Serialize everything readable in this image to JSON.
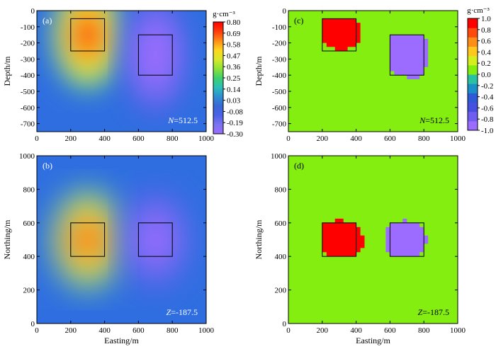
{
  "chart_data": [
    {
      "id": "a",
      "type": "heatmap",
      "panel_label": "(a)",
      "title": "",
      "annotation": "N=512.5",
      "xlabel": "",
      "ylabel": "Depth/m",
      "xlim": [
        0,
        1000
      ],
      "ylim": [
        -750,
        0
      ],
      "xticks": [
        0,
        200,
        400,
        600,
        800,
        1000
      ],
      "yticks": [
        0,
        -100,
        -200,
        -300,
        -400,
        -500,
        -600,
        -700
      ],
      "colorbar": "smooth",
      "boxes": [
        {
          "x": [
            200,
            400
          ],
          "y": [
            -250,
            -50
          ]
        },
        {
          "x": [
            600,
            800
          ],
          "y": [
            -400,
            -150
          ]
        }
      ],
      "value_range": [
        -0.3,
        0.8
      ],
      "anomalies": [
        {
          "center_x": 300,
          "center_y": -150,
          "peak": 0.8
        },
        {
          "center_x": 700,
          "center_y": -275,
          "peak": -0.3
        }
      ]
    },
    {
      "id": "b",
      "type": "heatmap",
      "panel_label": "(b)",
      "title": "",
      "annotation": "Z=-187.5",
      "xlabel": "Easting/m",
      "ylabel": "Northing/m",
      "xlim": [
        0,
        1000
      ],
      "ylim": [
        0,
        1000
      ],
      "xticks": [
        0,
        200,
        400,
        600,
        800,
        1000
      ],
      "yticks": [
        0,
        200,
        400,
        600,
        800,
        1000
      ],
      "colorbar": "smooth",
      "boxes": [
        {
          "x": [
            200,
            400
          ],
          "y": [
            400,
            600
          ]
        },
        {
          "x": [
            600,
            800
          ],
          "y": [
            400,
            600
          ]
        }
      ],
      "value_range": [
        -0.3,
        0.8
      ],
      "anomalies": [
        {
          "center_x": 300,
          "center_y": 500,
          "peak": 0.8
        },
        {
          "center_x": 700,
          "center_y": 500,
          "peak": -0.3
        }
      ]
    },
    {
      "id": "c",
      "type": "heatmap",
      "panel_label": "(c)",
      "title": "",
      "annotation": "N=512.5",
      "xlabel": "",
      "ylabel": "Depth/m",
      "xlim": [
        0,
        1000
      ],
      "ylim": [
        -750,
        0
      ],
      "xticks": [
        0,
        200,
        400,
        600,
        800,
        1000
      ],
      "yticks": [
        0,
        -100,
        -200,
        -300,
        -400,
        -500,
        -600,
        -700
      ],
      "colorbar": "discrete",
      "background_value": 0.0,
      "boxes": [
        {
          "x": [
            200,
            400
          ],
          "y": [
            -250,
            -50
          ]
        },
        {
          "x": [
            600,
            800
          ],
          "y": [
            -400,
            -150
          ]
        }
      ],
      "blocks": [
        {
          "value": 1.0,
          "polygon": [
            [
              200,
              -50
            ],
            [
              400,
              -50
            ],
            [
              400,
              -75
            ],
            [
              425,
              -75
            ],
            [
              425,
              -200
            ],
            [
              400,
              -200
            ],
            [
              400,
              -225
            ],
            [
              350,
              -225
            ],
            [
              350,
              -250
            ],
            [
              275,
              -250
            ],
            [
              275,
              -225
            ],
            [
              225,
              -225
            ],
            [
              225,
              -200
            ],
            [
              200,
              -200
            ]
          ]
        },
        {
          "value": -1.0,
          "polygon": [
            [
              600,
              -150
            ],
            [
              800,
              -150
            ],
            [
              800,
              -175
            ],
            [
              825,
              -175
            ],
            [
              825,
              -350
            ],
            [
              800,
              -350
            ],
            [
              800,
              -400
            ],
            [
              775,
              -400
            ],
            [
              775,
              -425
            ],
            [
              700,
              -425
            ],
            [
              700,
              -400
            ],
            [
              625,
              -400
            ],
            [
              625,
              -375
            ],
            [
              600,
              -375
            ]
          ]
        }
      ]
    },
    {
      "id": "d",
      "type": "heatmap",
      "panel_label": "(d)",
      "title": "",
      "annotation": "Z=-187.5",
      "xlabel": "Easting/m",
      "ylabel": "Northing/m",
      "xlim": [
        0,
        1000
      ],
      "ylim": [
        0,
        1000
      ],
      "xticks": [
        0,
        200,
        400,
        600,
        800,
        1000
      ],
      "yticks": [
        0,
        200,
        400,
        600,
        800,
        1000
      ],
      "colorbar": "discrete",
      "background_value": 0.0,
      "boxes": [
        {
          "x": [
            200,
            400
          ],
          "y": [
            400,
            600
          ]
        },
        {
          "x": [
            600,
            800
          ],
          "y": [
            400,
            600
          ]
        }
      ],
      "blocks": [
        {
          "value": 1.0,
          "polygon": [
            [
              200,
              425
            ],
            [
              200,
              600
            ],
            [
              275,
              600
            ],
            [
              275,
              625
            ],
            [
              325,
              625
            ],
            [
              325,
              600
            ],
            [
              400,
              600
            ],
            [
              400,
              575
            ],
            [
              425,
              575
            ],
            [
              425,
              525
            ],
            [
              450,
              525
            ],
            [
              450,
              450
            ],
            [
              425,
              450
            ],
            [
              425,
              425
            ],
            [
              400,
              425
            ],
            [
              400,
              400
            ],
            [
              225,
              400
            ],
            [
              225,
              425
            ]
          ]
        },
        {
          "value": -1.0,
          "polygon": [
            [
              575,
              425
            ],
            [
              575,
              575
            ],
            [
              600,
              575
            ],
            [
              600,
              600
            ],
            [
              675,
              600
            ],
            [
              675,
              625
            ],
            [
              700,
              625
            ],
            [
              700,
              600
            ],
            [
              775,
              600
            ],
            [
              775,
              575
            ],
            [
              800,
              575
            ],
            [
              800,
              525
            ],
            [
              825,
              525
            ],
            [
              825,
              475
            ],
            [
              800,
              475
            ],
            [
              800,
              425
            ],
            [
              775,
              425
            ],
            [
              775,
              400
            ],
            [
              600,
              400
            ],
            [
              600,
              425
            ]
          ]
        }
      ]
    }
  ],
  "colorbars": {
    "smooth": {
      "unit": "g·cm⁻³",
      "ticks": [
        "0.80",
        "0.69",
        "0.58",
        "0.47",
        "0.36",
        "0.25",
        "0.14",
        "0.03",
        "-0.08",
        "-0.19",
        "-0.30"
      ],
      "colors": [
        "#9b6cff",
        "#7a74f0",
        "#4a62e6",
        "#3768d6",
        "#2d8fd0",
        "#2dbfb8",
        "#3fd06d",
        "#8fe337",
        "#d9e92c",
        "#ffd61f",
        "#ff8a18",
        "#ff3b0d",
        "#ff0000"
      ]
    },
    "discrete": {
      "unit": "g·cm⁻³",
      "ticks": [
        "1.0",
        "0.8",
        "0.6",
        "0.4",
        "0.2",
        "0.0",
        "-0.2",
        "-0.4",
        "-0.6",
        "-0.8",
        "-1.0"
      ],
      "colors": [
        "#9b6cff",
        "#6f5cf0",
        "#4650e0",
        "#2e5ad8",
        "#1c8ec8",
        "#2ac0a2",
        "#84ee10",
        "#d4ee1e",
        "#ffc81e",
        "#ff8e18",
        "#ff4a0e",
        "#ff0000"
      ]
    }
  }
}
